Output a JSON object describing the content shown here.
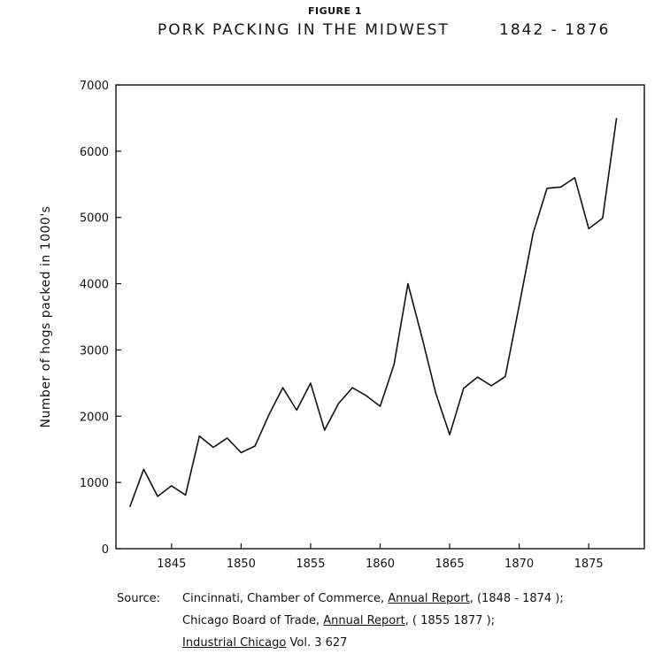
{
  "figure_label": "FIGURE 1",
  "title": "PORK PACKING IN THE MIDWEST",
  "title_years": "1842 - 1876",
  "source": {
    "label": "Source:",
    "line1": {
      "a": "Cincinnati, Chamber of Commerce, ",
      "b": "Annual Report",
      "c": ", (1848 - 1874 );"
    },
    "line2": {
      "a": "Chicago Board of Trade, ",
      "b": "Annual Report",
      "c": ", ( 1855  1877 );"
    },
    "line3": {
      "b": "Industrial Chicago",
      "c": "  Vol. 3  627"
    }
  },
  "chart_data": {
    "type": "line",
    "title": "PORK PACKING IN THE MIDWEST",
    "xlabel": "",
    "ylabel": "Number of hogs packed in 1000's",
    "xlim": [
      1841,
      1879
    ],
    "ylim": [
      0,
      7000
    ],
    "x_ticks": [
      1845,
      1850,
      1855,
      1860,
      1865,
      1870,
      1875
    ],
    "y_ticks": [
      0,
      1000,
      2000,
      3000,
      4000,
      5000,
      6000,
      7000
    ],
    "grid": false,
    "series": [
      {
        "x": [
          1842,
          1843,
          1844,
          1845,
          1846,
          1847,
          1848,
          1849,
          1850,
          1851,
          1852,
          1853,
          1854,
          1855,
          1856,
          1857,
          1858,
          1859,
          1860,
          1861,
          1862,
          1863,
          1864,
          1865,
          1866,
          1867,
          1868,
          1869,
          1870,
          1871,
          1872,
          1873,
          1874,
          1875,
          1876,
          1877
        ],
        "values": [
          630,
          1200,
          790,
          950,
          810,
          1700,
          1530,
          1670,
          1450,
          1550,
          2020,
          2430,
          2090,
          2500,
          1790,
          2190,
          2430,
          2310,
          2150,
          2780,
          4000,
          3200,
          2350,
          1720,
          2420,
          2590,
          2460,
          2600,
          3670,
          4760,
          5440,
          5460,
          5600,
          4830,
          4990,
          6500
        ]
      }
    ]
  }
}
